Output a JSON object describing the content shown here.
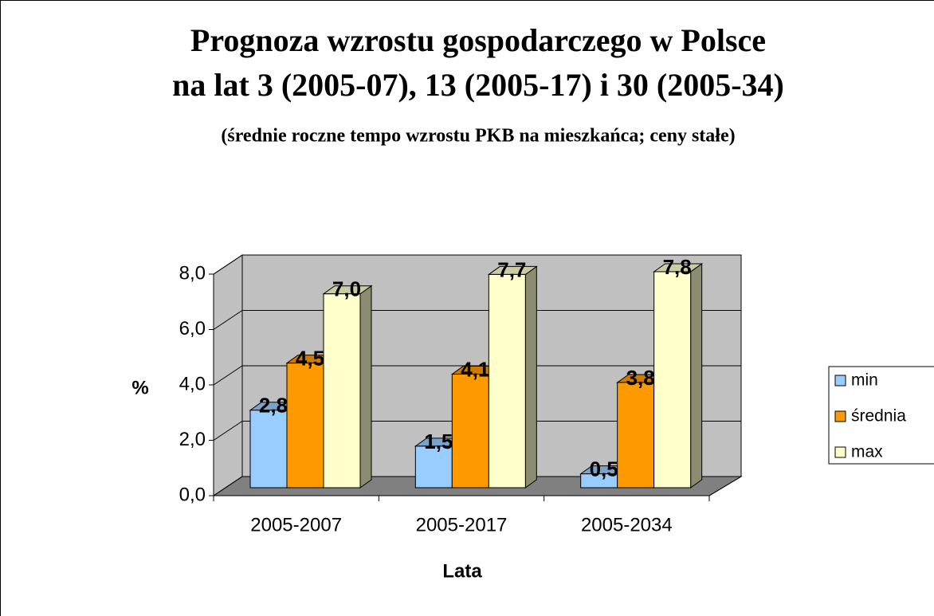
{
  "chart_data": {
    "type": "bar3d",
    "title": [
      "Prognoza wzrostu gospodarczego w Polsce",
      "na lat 3 (2005-07), 13 (2005-17) i 30 (2005-34)"
    ],
    "subtitle": "(średnie roczne tempo wzrostu PKB na mieszkańca; ceny stałe)",
    "y_label": "%",
    "x_label": "Lata",
    "categories": [
      "2005-2007",
      "2005-2017",
      "2005-2034"
    ],
    "series": [
      {
        "name": "min",
        "color": "#99ccff",
        "values": [
          2.8,
          1.5,
          0.5
        ],
        "value_labels": [
          "2,8",
          "1,5",
          "0,5"
        ]
      },
      {
        "name": "średnia",
        "color": "#ff9900",
        "values": [
          4.5,
          4.1,
          3.8
        ],
        "value_labels": [
          "4,5",
          "4,1",
          "3,8"
        ]
      },
      {
        "name": "max",
        "color": "#ffffcc",
        "values": [
          7.0,
          7.7,
          7.8
        ],
        "value_labels": [
          "7,0",
          "7,7",
          "7,8"
        ]
      }
    ],
    "ylim": [
      0,
      8
    ],
    "yticks": [
      {
        "value": 0,
        "label": "0,0"
      },
      {
        "value": 2,
        "label": "2,0"
      },
      {
        "value": 4,
        "label": "4,0"
      },
      {
        "value": 6,
        "label": "6,0"
      },
      {
        "value": 8,
        "label": "8,0"
      }
    ],
    "grid": true,
    "legend": "right"
  }
}
